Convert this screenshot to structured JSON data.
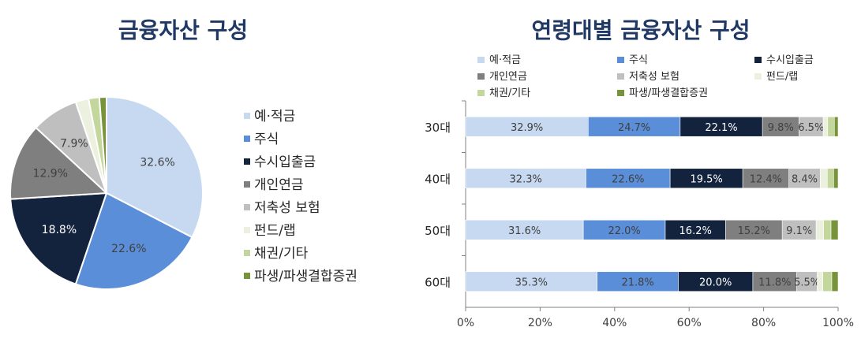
{
  "chart_data": [
    {
      "type": "pie",
      "title": "금융자산 구성",
      "categories": [
        "예·적금",
        "주식",
        "수시입출금",
        "개인연금",
        "저축성 보험",
        "펀드/랩",
        "채권/기타",
        "파생/파생결합증권"
      ],
      "values": [
        32.6,
        22.6,
        18.8,
        12.9,
        7.9,
        2.2,
        1.8,
        1.2
      ],
      "data_labels": [
        "32.6%",
        "22.6%",
        "18.8%",
        "12.9%",
        "7.9%",
        "",
        "",
        ""
      ],
      "colors": [
        "#c6d9f1",
        "#5b8ed8",
        "#14233d",
        "#7f7f7f",
        "#bfbfbf",
        "#ebf1de",
        "#c3d69b",
        "#77933c"
      ],
      "legend_position": "right"
    },
    {
      "type": "stacked-bar-horizontal",
      "title": "연령대별 금융자산 구성",
      "categories": [
        "30대",
        "40대",
        "50대",
        "60대"
      ],
      "xlim": [
        0,
        100
      ],
      "x_ticks": [
        "0%",
        "20%",
        "40%",
        "60%",
        "80%",
        "100%"
      ],
      "grid": false,
      "legend_position": "top",
      "series": [
        {
          "name": "예·적금",
          "color": "#c6d9f1",
          "values": [
            32.9,
            32.3,
            31.6,
            35.3
          ],
          "labels": [
            "32.9%",
            "32.3%",
            "31.6%",
            "35.3%"
          ]
        },
        {
          "name": "주식",
          "color": "#5b8ed8",
          "values": [
            24.7,
            22.6,
            22.0,
            21.8
          ],
          "labels": [
            "24.7%",
            "22.6%",
            "22.0%",
            "21.8%"
          ]
        },
        {
          "name": "수시입출금",
          "color": "#14233d",
          "values": [
            22.1,
            19.5,
            16.2,
            20.0
          ],
          "labels": [
            "22.1%",
            "19.5%",
            "16.2%",
            "20.0%"
          ]
        },
        {
          "name": "개인연금",
          "color": "#7f7f7f",
          "values": [
            9.8,
            12.4,
            15.2,
            11.8
          ],
          "labels": [
            "9.8%",
            "12.4%",
            "15.2%",
            "11.8%"
          ]
        },
        {
          "name": "저축성 보험",
          "color": "#bfbfbf",
          "values": [
            6.5,
            8.4,
            9.1,
            5.5
          ],
          "labels": [
            "6.5%",
            "8.4%",
            "9.1%",
            "5.5%"
          ]
        },
        {
          "name": "펀드/랩",
          "color": "#ebf1de",
          "values": [
            1.2,
            1.9,
            2.0,
            1.5
          ],
          "labels": [
            "",
            "",
            "",
            ""
          ]
        },
        {
          "name": "채권/기타",
          "color": "#c3d69b",
          "values": [
            1.8,
            1.7,
            2.0,
            2.4
          ],
          "labels": [
            "",
            "",
            "",
            ""
          ]
        },
        {
          "name": "파생/파생결합증권",
          "color": "#77933c",
          "values": [
            1.0,
            1.2,
            1.9,
            1.7
          ],
          "labels": [
            "",
            "",
            "",
            ""
          ]
        }
      ]
    }
  ]
}
